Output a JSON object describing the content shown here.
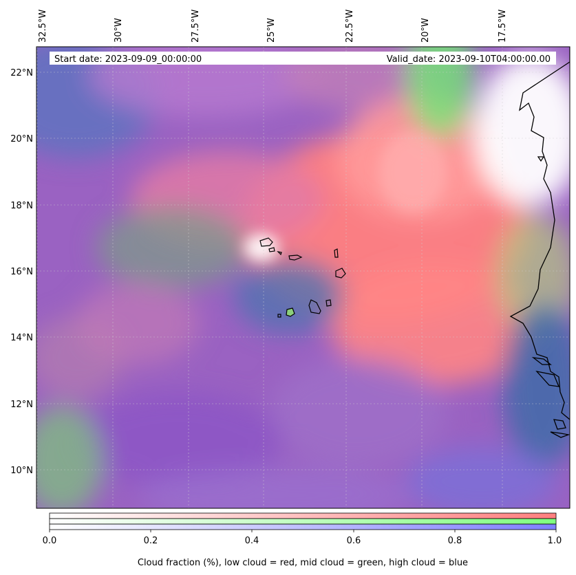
{
  "header": {
    "start_date": "Start date: 2023-09-09_00:00:00",
    "valid_date": "Valid_date: 2023-09-10T04:00:00.00"
  },
  "map": {
    "lon_labels": [
      "32.5°W",
      "30°W",
      "27.5°W",
      "25°W",
      "22.5°W",
      "20°W",
      "17.5°W"
    ],
    "lat_labels": [
      "22°N",
      "20°N",
      "18°N",
      "16°N",
      "14°N",
      "12°N",
      "10°N"
    ],
    "extent": {
      "lon_min": -33.0,
      "lon_max": -15.8,
      "lat_min": 8.9,
      "lat_max": 22.8
    },
    "colors": {
      "low_cloud": "#ff7f7f",
      "mid_cloud": "#7fff7f",
      "high_cloud": "#7f7fff",
      "coast": "#000000"
    }
  },
  "colorbar": {
    "ticks": [
      "0.0",
      "0.2",
      "0.4",
      "0.6",
      "0.8",
      "1.0"
    ],
    "label": "Cloud fraction (%), low cloud = red, mid cloud = green, high cloud = blue"
  }
}
